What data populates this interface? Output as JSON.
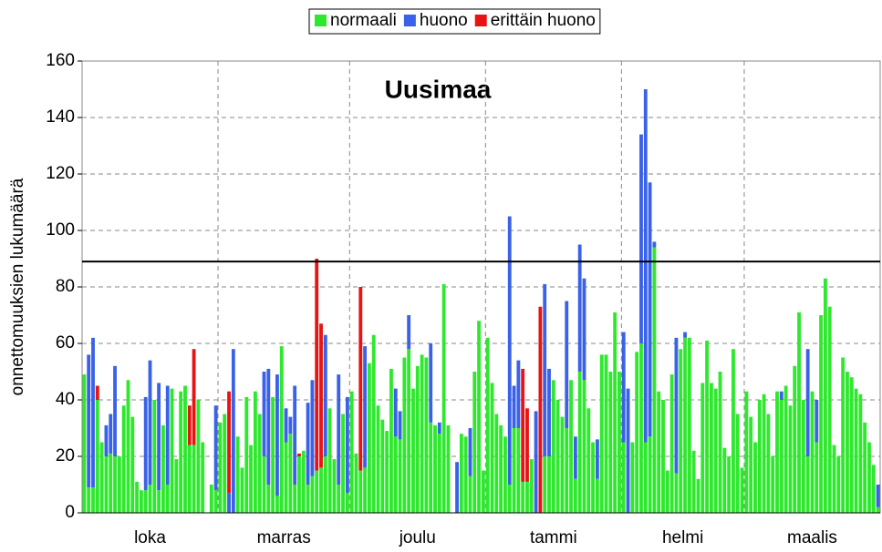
{
  "chart_data": {
    "type": "bar",
    "stacked": true,
    "title": "Uusimaa",
    "ylabel": "onnettomuuksien lukumäärä",
    "categories": [
      "loka",
      "marras",
      "joulu",
      "tammi",
      "helmi",
      "maalis"
    ],
    "ylim": [
      0,
      160
    ],
    "yticks": [
      0,
      20,
      40,
      60,
      80,
      100,
      120,
      140,
      160
    ],
    "grid": true,
    "legend": "top",
    "reference_line": 89,
    "reference_color": "#000000",
    "series": [
      {
        "name": "normaali",
        "color": "#2ee82e",
        "values": [
          [
            49,
            9,
            9,
            40,
            25,
            20,
            21,
            20,
            20,
            38,
            47,
            34,
            11,
            8,
            8,
            10,
            40,
            8,
            31,
            10,
            44,
            19,
            43,
            45,
            24,
            24,
            40,
            25,
            0,
            10,
            8
          ],
          [
            32,
            35,
            0,
            0,
            27,
            16,
            41,
            24,
            43,
            35,
            20,
            10,
            41,
            6,
            59,
            25,
            28,
            10,
            20,
            22,
            10,
            13,
            15,
            16,
            20,
            37,
            19,
            10,
            35,
            7
          ],
          [
            43,
            21,
            15,
            16,
            53,
            63,
            38,
            33,
            29,
            51,
            27,
            26,
            55,
            58,
            44,
            52,
            56,
            55,
            32,
            31,
            28,
            81,
            31,
            0,
            0,
            28,
            27,
            13,
            50,
            68,
            15
          ],
          [
            62,
            46,
            35,
            31,
            27,
            10,
            30,
            30,
            11,
            11,
            19,
            0,
            0,
            20,
            20,
            47,
            40,
            34,
            30,
            47,
            12,
            50,
            47,
            37,
            25,
            12,
            56,
            56,
            50,
            71,
            50
          ],
          [
            25,
            0,
            25,
            57,
            60,
            25,
            27,
            94,
            43,
            40,
            15,
            49,
            14,
            58,
            62,
            62,
            22,
            12,
            46,
            61,
            46,
            44,
            50,
            23,
            20,
            58,
            35,
            16
          ],
          [
            43,
            34,
            25,
            40,
            42,
            35,
            20,
            43,
            40,
            45,
            38,
            52,
            71,
            40,
            20,
            43,
            25,
            70,
            83,
            73,
            24,
            20,
            55,
            50,
            48,
            44,
            42,
            32,
            25,
            17,
            2
          ]
        ]
      },
      {
        "name": "huono",
        "color": "#3a62e8",
        "values": [
          [
            0,
            47,
            53,
            0,
            0,
            11,
            14,
            32,
            0,
            0,
            0,
            0,
            0,
            0,
            33,
            44,
            0,
            38,
            0,
            35,
            0,
            0,
            0,
            0,
            0,
            0,
            0,
            0,
            0,
            0,
            30
          ],
          [
            0,
            0,
            7,
            58,
            0,
            0,
            0,
            0,
            0,
            0,
            30,
            41,
            0,
            43,
            0,
            12,
            6,
            35,
            0,
            0,
            29,
            34,
            0,
            0,
            43,
            0,
            0,
            39,
            0,
            34
          ],
          [
            0,
            0,
            0,
            43,
            0,
            0,
            0,
            0,
            0,
            0,
            17,
            10,
            0,
            12,
            0,
            0,
            0,
            0,
            28,
            0,
            4,
            0,
            0,
            0,
            18,
            0,
            0,
            17,
            0,
            0,
            0
          ],
          [
            0,
            0,
            0,
            0,
            0,
            95,
            15,
            24,
            0,
            0,
            0,
            36,
            0,
            61,
            31,
            0,
            0,
            0,
            45,
            0,
            15,
            45,
            36,
            0,
            0,
            14,
            0,
            0,
            0,
            0,
            0
          ],
          [
            39,
            44,
            0,
            0,
            74,
            125,
            90,
            2,
            0,
            0,
            0,
            0,
            48,
            0,
            2,
            0,
            0,
            0,
            0,
            0,
            0,
            0,
            0,
            0,
            0,
            0,
            0,
            0
          ],
          [
            0,
            0,
            0,
            0,
            0,
            0,
            0,
            0,
            3,
            0,
            0,
            0,
            0,
            0,
            38,
            0,
            15,
            0,
            0,
            0,
            0,
            0,
            0,
            0,
            0,
            0,
            0,
            0,
            0,
            0,
            8
          ]
        ]
      },
      {
        "name": "erittäin huono",
        "color": "#e81414",
        "values": [
          [
            0,
            0,
            0,
            5,
            0,
            0,
            0,
            0,
            0,
            0,
            0,
            0,
            0,
            0,
            0,
            0,
            0,
            0,
            0,
            0,
            0,
            0,
            0,
            0,
            14,
            34,
            0,
            0,
            0,
            0,
            0
          ],
          [
            0,
            0,
            36,
            0,
            0,
            0,
            0,
            0,
            0,
            0,
            0,
            0,
            0,
            0,
            0,
            0,
            0,
            0,
            1,
            0,
            0,
            0,
            75,
            51,
            0,
            0,
            0,
            0,
            0,
            0
          ],
          [
            0,
            0,
            65,
            0,
            0,
            0,
            0,
            0,
            0,
            0,
            0,
            0,
            0,
            0,
            0,
            0,
            0,
            0,
            0,
            0,
            0,
            0,
            0,
            0,
            0,
            0,
            0,
            0,
            0,
            0,
            0
          ],
          [
            0,
            0,
            0,
            0,
            0,
            0,
            0,
            0,
            40,
            26,
            0,
            0,
            73,
            0,
            0,
            0,
            0,
            0,
            0,
            0,
            0,
            0,
            0,
            0,
            0,
            0,
            0,
            0,
            0,
            0,
            0
          ],
          [
            0,
            0,
            0,
            0,
            0,
            0,
            0,
            0,
            0,
            0,
            0,
            0,
            0,
            0,
            0,
            0,
            0,
            0,
            0,
            0,
            0,
            0,
            0,
            0,
            0,
            0,
            0,
            0
          ],
          [
            0,
            0,
            0,
            0,
            0,
            0,
            0,
            0,
            0,
            0,
            0,
            0,
            0,
            0,
            0,
            0,
            0,
            0,
            0,
            0,
            0,
            0,
            0,
            0,
            0,
            0,
            0,
            0,
            0,
            0,
            0
          ]
        ]
      }
    ]
  }
}
